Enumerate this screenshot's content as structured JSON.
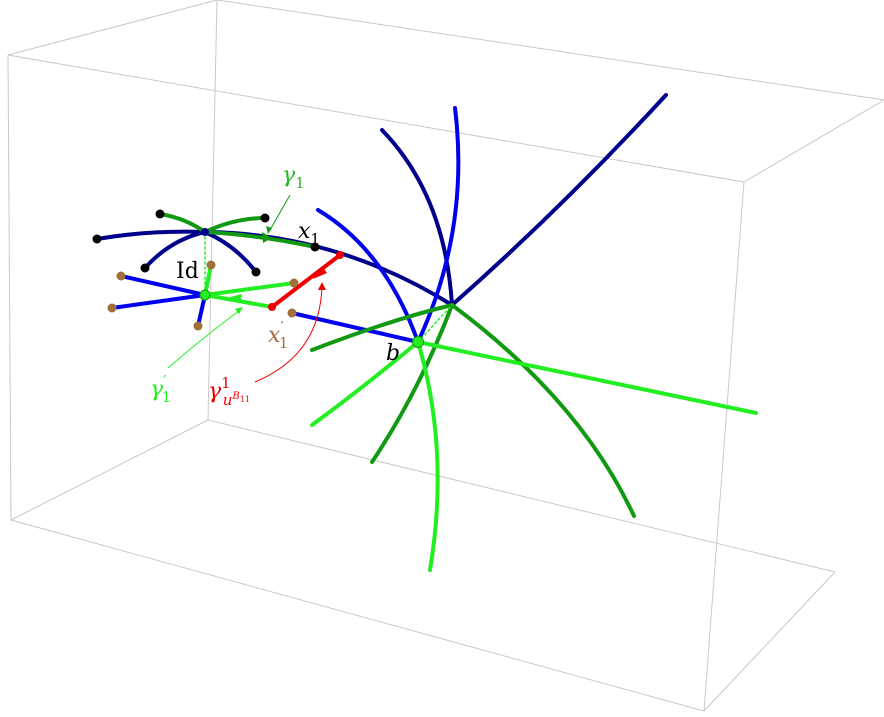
{
  "colors": {
    "box": "#c8c8c8",
    "dark_blue": "#00008b",
    "blue": "#0000ee",
    "green": "#119911",
    "light_green": "#22ee22",
    "red": "#ee0000",
    "brown": "#a0703a",
    "black": "#000000"
  },
  "labels": {
    "id": "Id",
    "x1": "x",
    "x1_sub": "1",
    "b": "b",
    "gamma1": "γ",
    "gamma1_sub": "1",
    "gamma1p": "γ",
    "gamma1p_sub": "1",
    "gamma1p_prime": "′",
    "x1p": "x",
    "x1p_sub": "1",
    "x1p_prime": "′",
    "gamma_u": "γ",
    "gamma_u_sup": "1",
    "gamma_u_sub": "u",
    "gamma_u_subsup": "B",
    "gamma_u_subsubsup": "11"
  }
}
